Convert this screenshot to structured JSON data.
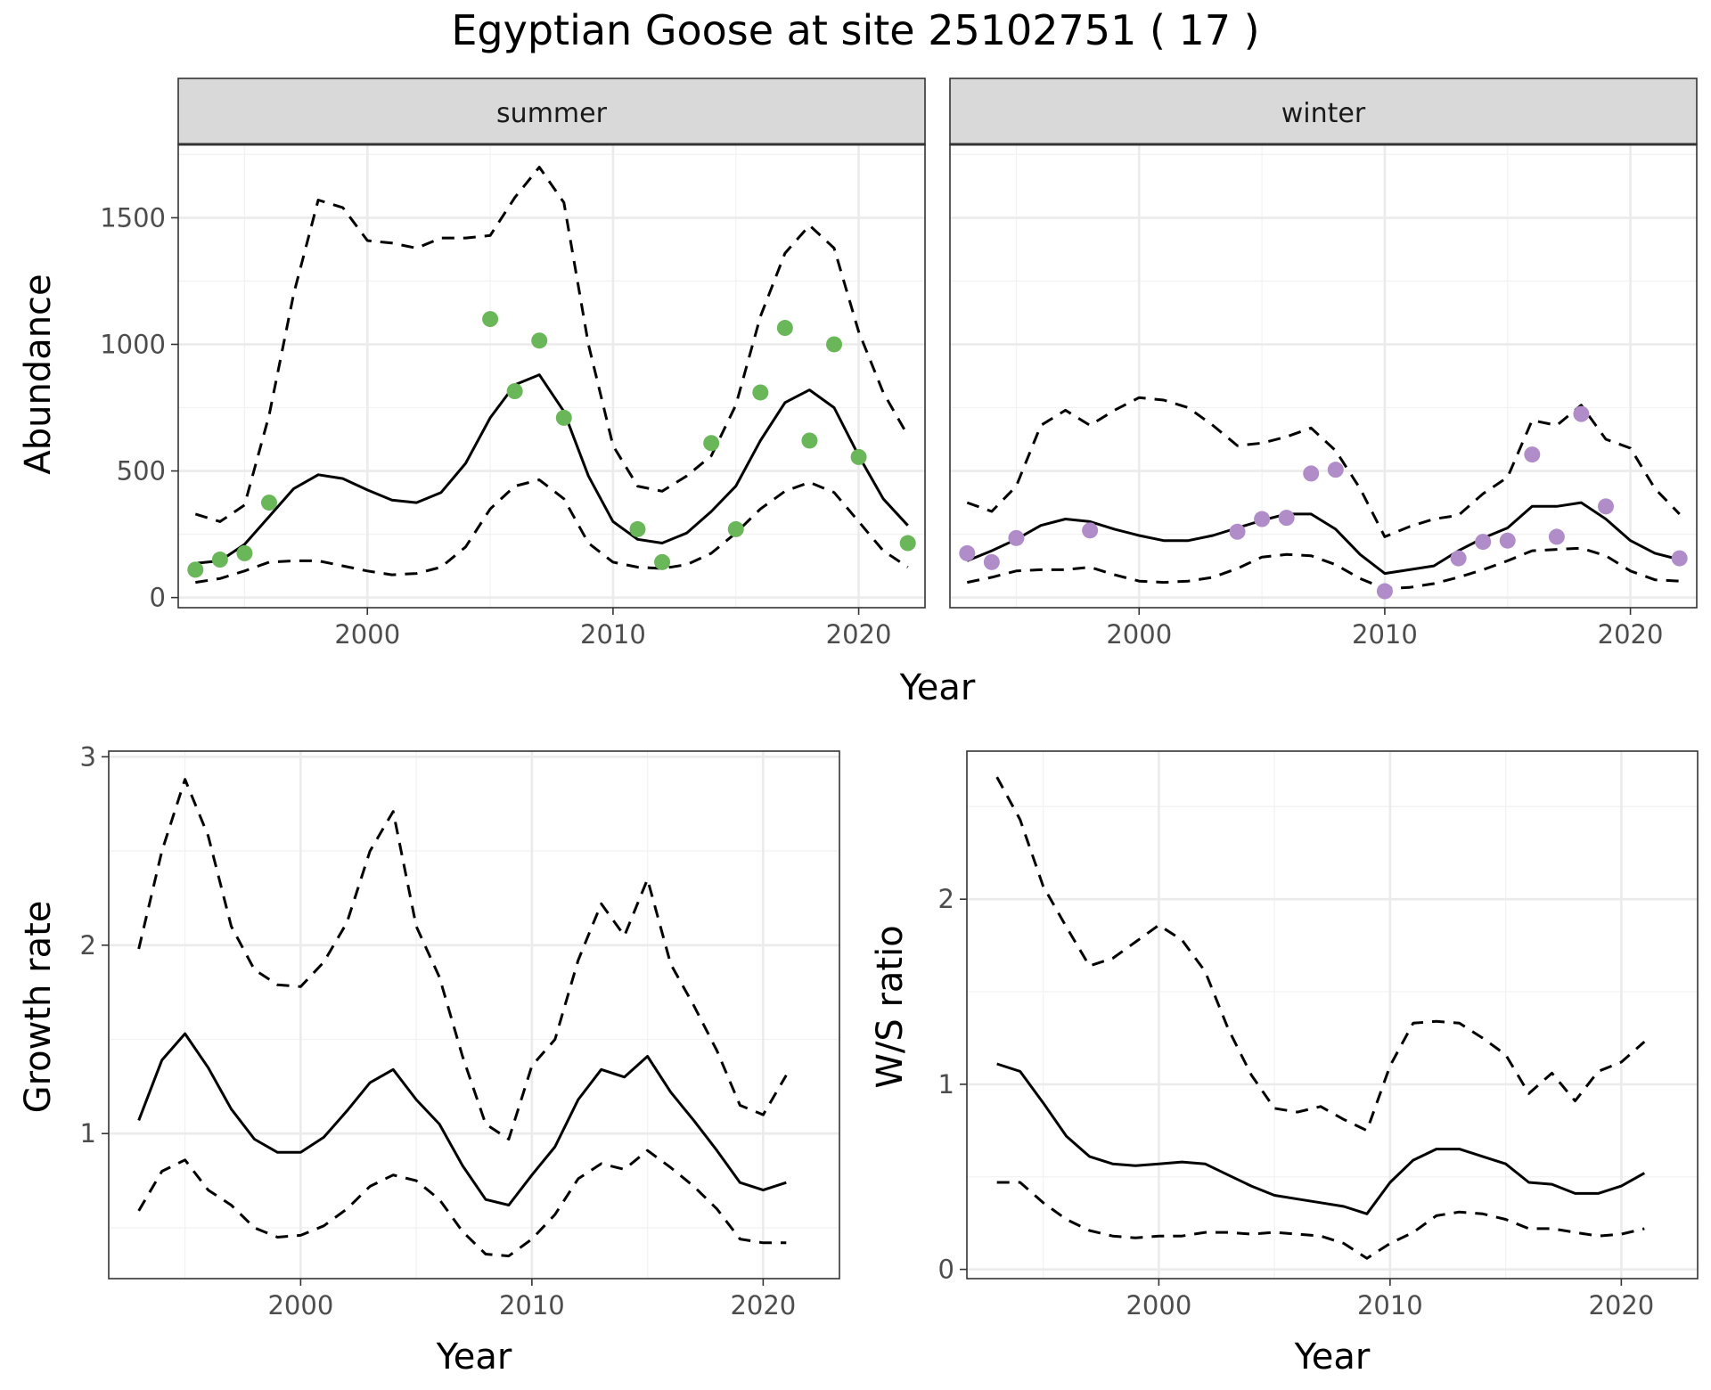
{
  "figure": {
    "title": "Egyptian Goose at site 25102751 ( 17 )"
  },
  "colors": {
    "summer_points": "#6ab759",
    "winter_points": "#b08dc8",
    "lines": "#000000"
  },
  "chart_data": [
    {
      "id": "abundance",
      "type": "line",
      "panels": [
        "summer",
        "winter"
      ],
      "xlabel": "Year",
      "ylabel": "Abundance",
      "xlim": [
        1992.3,
        2022.7
      ],
      "ylim": [
        -40,
        1790
      ],
      "x_ticks": [
        2000,
        2010,
        2020
      ],
      "y_ticks": [
        0,
        500,
        1000,
        1500
      ],
      "x": [
        1993,
        1994,
        1995,
        1996,
        1997,
        1998,
        1999,
        2000,
        2001,
        2002,
        2003,
        2004,
        2005,
        2006,
        2007,
        2008,
        2009,
        2010,
        2011,
        2012,
        2013,
        2014,
        2015,
        2016,
        2017,
        2018,
        2019,
        2020,
        2021,
        2022
      ],
      "series": [
        {
          "panel": "summer",
          "mean": [
            135,
            145,
            210,
            320,
            430,
            485,
            470,
            425,
            385,
            375,
            415,
            530,
            710,
            840,
            880,
            735,
            480,
            300,
            230,
            215,
            255,
            340,
            440,
            620,
            770,
            820,
            750,
            560,
            390,
            285
          ],
          "lower": [
            60,
            75,
            105,
            140,
            145,
            145,
            125,
            105,
            90,
            95,
            120,
            200,
            350,
            440,
            465,
            390,
            215,
            140,
            120,
            115,
            130,
            175,
            255,
            350,
            420,
            455,
            415,
            300,
            185,
            120
          ],
          "upper": [
            330,
            300,
            365,
            720,
            1200,
            1570,
            1540,
            1410,
            1400,
            1380,
            1420,
            1420,
            1430,
            1580,
            1700,
            1560,
            1000,
            600,
            440,
            420,
            480,
            560,
            760,
            1110,
            1360,
            1470,
            1380,
            1050,
            810,
            640
          ],
          "points": [
            {
              "x": 1993,
              "y": 110
            },
            {
              "x": 1994,
              "y": 150
            },
            {
              "x": 1995,
              "y": 175
            },
            {
              "x": 1996,
              "y": 375
            },
            {
              "x": 2005,
              "y": 1100
            },
            {
              "x": 2006,
              "y": 815
            },
            {
              "x": 2007,
              "y": 1015
            },
            {
              "x": 2008,
              "y": 710
            },
            {
              "x": 2011,
              "y": 270
            },
            {
              "x": 2012,
              "y": 140
            },
            {
              "x": 2014,
              "y": 610
            },
            {
              "x": 2015,
              "y": 270
            },
            {
              "x": 2016,
              "y": 810
            },
            {
              "x": 2017,
              "y": 1065
            },
            {
              "x": 2018,
              "y": 620
            },
            {
              "x": 2019,
              "y": 1000
            },
            {
              "x": 2020,
              "y": 555
            },
            {
              "x": 2022,
              "y": 215
            }
          ]
        },
        {
          "panel": "winter",
          "mean": [
            145,
            185,
            230,
            285,
            310,
            300,
            270,
            245,
            225,
            225,
            245,
            275,
            305,
            330,
            330,
            270,
            170,
            95,
            110,
            125,
            185,
            235,
            275,
            360,
            360,
            375,
            310,
            225,
            175,
            150
          ],
          "lower": [
            60,
            80,
            105,
            110,
            110,
            120,
            90,
            65,
            60,
            65,
            80,
            115,
            160,
            170,
            165,
            130,
            75,
            35,
            40,
            55,
            80,
            110,
            145,
            185,
            190,
            195,
            165,
            105,
            70,
            65
          ],
          "upper": [
            375,
            340,
            440,
            680,
            740,
            680,
            740,
            790,
            780,
            750,
            680,
            600,
            610,
            635,
            670,
            580,
            430,
            240,
            280,
            310,
            325,
            410,
            475,
            700,
            680,
            760,
            625,
            590,
            430,
            330
          ],
          "points": [
            {
              "x": 1993,
              "y": 175
            },
            {
              "x": 1994,
              "y": 140
            },
            {
              "x": 1995,
              "y": 235
            },
            {
              "x": 1998,
              "y": 265
            },
            {
              "x": 2004,
              "y": 260
            },
            {
              "x": 2005,
              "y": 310
            },
            {
              "x": 2006,
              "y": 315
            },
            {
              "x": 2007,
              "y": 490
            },
            {
              "x": 2008,
              "y": 505
            },
            {
              "x": 2010,
              "y": 25
            },
            {
              "x": 2013,
              "y": 155
            },
            {
              "x": 2014,
              "y": 220
            },
            {
              "x": 2015,
              "y": 225
            },
            {
              "x": 2016,
              "y": 565
            },
            {
              "x": 2017,
              "y": 240
            },
            {
              "x": 2018,
              "y": 725
            },
            {
              "x": 2019,
              "y": 360
            },
            {
              "x": 2022,
              "y": 155
            }
          ]
        }
      ]
    },
    {
      "id": "growth",
      "type": "line",
      "xlabel": "Year",
      "ylabel": "Growth rate",
      "xlim": [
        1991.7,
        2023.3
      ],
      "ylim": [
        0.23,
        3.03
      ],
      "x_ticks": [
        2000,
        2010,
        2020
      ],
      "y_ticks": [
        1,
        2,
        3
      ],
      "x": [
        1993,
        1994,
        1995,
        1996,
        1997,
        1998,
        1999,
        2000,
        2001,
        2002,
        2003,
        2004,
        2005,
        2006,
        2007,
        2008,
        2009,
        2010,
        2011,
        2012,
        2013,
        2014,
        2015,
        2016,
        2017,
        2018,
        2019,
        2020,
        2021
      ],
      "series": [
        {
          "mean": [
            1.07,
            1.39,
            1.53,
            1.35,
            1.13,
            0.97,
            0.9,
            0.9,
            0.98,
            1.12,
            1.27,
            1.34,
            1.18,
            1.05,
            0.83,
            0.65,
            0.62,
            0.78,
            0.93,
            1.18,
            1.34,
            1.3,
            1.41,
            1.22,
            1.07,
            0.91,
            0.74,
            0.7,
            0.74
          ],
          "lower": [
            0.59,
            0.8,
            0.86,
            0.7,
            0.62,
            0.5,
            0.45,
            0.46,
            0.51,
            0.6,
            0.72,
            0.78,
            0.75,
            0.65,
            0.48,
            0.36,
            0.35,
            0.44,
            0.57,
            0.76,
            0.84,
            0.81,
            0.91,
            0.82,
            0.72,
            0.6,
            0.44,
            0.42,
            0.42
          ],
          "upper": [
            1.98,
            2.5,
            2.88,
            2.58,
            2.1,
            1.87,
            1.79,
            1.78,
            1.91,
            2.12,
            2.5,
            2.71,
            2.1,
            1.83,
            1.41,
            1.05,
            0.97,
            1.36,
            1.5,
            1.92,
            2.22,
            2.05,
            2.35,
            1.9,
            1.68,
            1.44,
            1.15,
            1.1,
            1.31
          ]
        }
      ]
    },
    {
      "id": "ws_ratio",
      "type": "line",
      "xlabel": "Year",
      "ylabel": "W/S ratio",
      "xlim": [
        1991.7,
        2023.3
      ],
      "ylim": [
        -0.05,
        2.8
      ],
      "x_ticks": [
        2000,
        2010,
        2020
      ],
      "y_ticks": [
        0,
        1,
        2
      ],
      "x": [
        1993,
        1994,
        1995,
        1996,
        1997,
        1998,
        1999,
        2000,
        2001,
        2002,
        2003,
        2004,
        2005,
        2006,
        2007,
        2008,
        2009,
        2010,
        2011,
        2012,
        2013,
        2014,
        2015,
        2016,
        2017,
        2018,
        2019,
        2020,
        2021
      ],
      "series": [
        {
          "mean": [
            1.11,
            1.07,
            0.9,
            0.72,
            0.61,
            0.57,
            0.56,
            0.57,
            0.58,
            0.57,
            0.51,
            0.45,
            0.4,
            0.38,
            0.36,
            0.34,
            0.3,
            0.47,
            0.59,
            0.65,
            0.65,
            0.61,
            0.57,
            0.47,
            0.46,
            0.41,
            0.41,
            0.45,
            0.52
          ],
          "lower": [
            0.47,
            0.47,
            0.36,
            0.27,
            0.21,
            0.18,
            0.17,
            0.18,
            0.18,
            0.2,
            0.2,
            0.19,
            0.2,
            0.19,
            0.18,
            0.14,
            0.06,
            0.14,
            0.2,
            0.29,
            0.31,
            0.3,
            0.27,
            0.22,
            0.22,
            0.2,
            0.18,
            0.19,
            0.22
          ],
          "upper": [
            2.66,
            2.43,
            2.07,
            1.85,
            1.64,
            1.68,
            1.77,
            1.86,
            1.78,
            1.61,
            1.3,
            1.05,
            0.87,
            0.85,
            0.88,
            0.81,
            0.75,
            1.1,
            1.33,
            1.34,
            1.33,
            1.25,
            1.16,
            0.95,
            1.06,
            0.91,
            1.07,
            1.12,
            1.23
          ]
        }
      ]
    }
  ]
}
